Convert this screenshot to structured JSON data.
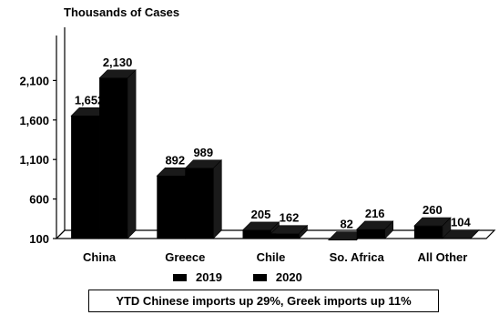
{
  "axis_title": "Thousands of Cases",
  "footnote": "YTD Chinese imports up 29%,  Greek imports up 11%",
  "colors": {
    "bars": "#000000",
    "bar_side": "#1a1a1a",
    "background": "#ffffff"
  },
  "chart_data": {
    "type": "bar",
    "categories": [
      "China",
      "Greece",
      "Chile",
      "So. Africa",
      "All Other"
    ],
    "series": [
      {
        "name": "2019",
        "values": [
          1652,
          892,
          205,
          82,
          260
        ]
      },
      {
        "name": "2020",
        "values": [
          2130,
          989,
          162,
          216,
          104
        ]
      }
    ],
    "value_labels": [
      [
        "1,652",
        "892",
        "205",
        "82",
        "260"
      ],
      [
        "2,130",
        "989",
        "162",
        "216",
        "104"
      ]
    ],
    "ylabel": "Thousands of Cases",
    "yticks": [
      100,
      600,
      1100,
      1600,
      2100
    ],
    "ytick_labels": [
      "100",
      "600",
      "1,100",
      "1,600",
      "2,100"
    ],
    "ylim": [
      100,
      2600
    ],
    "legend": "bottom",
    "grid": false
  }
}
